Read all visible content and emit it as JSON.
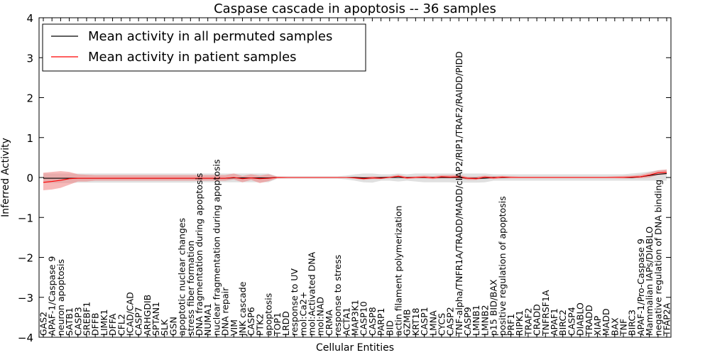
{
  "chart_data": {
    "type": "line",
    "title": "Caspase cascade in apoptosis -- 36 samples",
    "xlabel": "Cellular Entities",
    "ylabel": "Inferred Activity",
    "ylim": [
      -4,
      4
    ],
    "yticks": [
      -4,
      -3,
      -2,
      -1,
      0,
      1,
      2,
      3,
      4
    ],
    "grid": false,
    "legend_position": "top-left",
    "colors": {
      "mean_all": "#000000",
      "mean_patient": "#ff0000",
      "patient_band": "#f08080",
      "all_band": "#bbbbbb"
    },
    "categories": [
      "GAS2",
      "APAF-1/Caspase 9",
      "neuron apoptosis",
      "SATB1",
      "CASP3",
      "SREBF1",
      "DFFB",
      "LIMK1",
      "DFFA",
      "CFL2",
      "ICAD/CAD",
      "CASP7",
      "ARHGDIB",
      "SPTAN1",
      "SLK",
      "GSN",
      "apoptotic nuclear changes",
      "stress fiber formation",
      "DNA fragmentation during apoptosis",
      "NUMA1",
      "nuclear fragmentation during apoptosis",
      "DNA repair",
      "VIM",
      "JNK cascade",
      "CASP6",
      "PTK2",
      "apoptosis",
      "TOP1",
      "LRDD",
      "response to UV",
      "mol:Ca2+",
      "mol:Activated DNA",
      "mol:NAD",
      "CRMA",
      "response to stress",
      "ACTA1",
      "MAP3K1",
      "CASP10",
      "CASP8",
      "PARP1",
      "BID",
      "actin filament polymerization",
      "GZMB",
      "KRT18",
      "CASP1",
      "LMNA",
      "CYCS",
      "CASP2",
      "TNF-alpha/TNFR1A/TRADD/MADD/cIAP2/RIP1/TRAF2/RAIDD/PIDD",
      "CASP9",
      "LMNB1",
      "LMNB2",
      "p15 BID/BAX",
      "positive regulation of apoptosis",
      "PRF1",
      "RIPK1",
      "TRAF2",
      "CRADD",
      "TNFRSF1A",
      "APAF1",
      "BIRC2",
      "CASP4",
      "DIABLO",
      "TRADD",
      "XIAP",
      "MADD",
      "BAX",
      "TNF",
      "BIRC3",
      "APAF-1/Pro-Caspase 9",
      "Mammalian IAPs/DIABLO",
      "negative regulation of DNA binding",
      "TFAP2A"
    ],
    "series": [
      {
        "name": "Mean activity in all permuted samples",
        "color": "#000000",
        "values": [
          -0.02,
          -0.02,
          -0.02,
          -0.02,
          -0.02,
          -0.02,
          -0.02,
          -0.02,
          -0.02,
          -0.02,
          -0.02,
          -0.02,
          -0.02,
          -0.02,
          -0.02,
          -0.02,
          -0.02,
          -0.02,
          -0.02,
          -0.02,
          -0.02,
          -0.02,
          -0.01,
          -0.01,
          -0.01,
          -0.01,
          -0.01,
          0,
          0,
          0,
          0,
          0,
          0,
          0,
          0,
          0,
          0,
          -0.01,
          -0.01,
          0,
          0,
          0,
          0,
          0,
          0,
          0,
          0,
          0,
          0,
          -0.02,
          -0.02,
          -0.02,
          0,
          0,
          0,
          0,
          0,
          0,
          0,
          0,
          0,
          0,
          0,
          0,
          0,
          0,
          0,
          0,
          0,
          0.02,
          0.05,
          0.08,
          0.1
        ],
        "lower": [
          -0.14,
          -0.14,
          -0.14,
          -0.14,
          -0.13,
          -0.13,
          -0.13,
          -0.13,
          -0.13,
          -0.13,
          -0.13,
          -0.13,
          -0.13,
          -0.13,
          -0.13,
          -0.13,
          -0.13,
          -0.13,
          -0.12,
          -0.12,
          -0.12,
          -0.12,
          -0.12,
          -0.12,
          -0.12,
          -0.12,
          -0.12,
          -0.03,
          -0.03,
          -0.03,
          -0.03,
          -0.03,
          -0.03,
          -0.03,
          -0.03,
          -0.05,
          -0.08,
          -0.12,
          -0.13,
          -0.08,
          -0.08,
          -0.1,
          -0.08,
          -0.1,
          -0.12,
          -0.12,
          -0.12,
          -0.12,
          -0.13,
          -0.13,
          -0.13,
          -0.12,
          -0.08,
          -0.08,
          -0.08,
          -0.08,
          -0.08,
          -0.08,
          -0.08,
          -0.08,
          -0.08,
          -0.08,
          -0.08,
          -0.08,
          -0.08,
          -0.08,
          -0.08,
          -0.08,
          -0.08,
          -0.08,
          -0.08,
          -0.08,
          -0.08
        ],
        "upper": [
          0.1,
          0.1,
          0.1,
          0.1,
          0.1,
          0.1,
          0.1,
          0.1,
          0.1,
          0.1,
          0.1,
          0.1,
          0.1,
          0.1,
          0.1,
          0.1,
          0.1,
          0.1,
          0.1,
          0.1,
          0.1,
          0.1,
          0.1,
          0.1,
          0.1,
          0.1,
          0.1,
          0.03,
          0.03,
          0.03,
          0.03,
          0.03,
          0.03,
          0.03,
          0.03,
          0.05,
          0.08,
          0.1,
          0.1,
          0.08,
          0.08,
          0.1,
          0.08,
          0.1,
          0.1,
          0.1,
          0.1,
          0.1,
          0.1,
          0.1,
          0.1,
          0.1,
          0.08,
          0.08,
          0.08,
          0.08,
          0.08,
          0.08,
          0.08,
          0.08,
          0.08,
          0.08,
          0.08,
          0.08,
          0.08,
          0.08,
          0.08,
          0.08,
          0.1,
          0.12,
          0.15,
          0.18,
          0.2
        ]
      },
      {
        "name": "Mean activity in patient samples",
        "color": "#ff0000",
        "values": [
          -0.12,
          -0.1,
          -0.07,
          -0.03,
          -0.02,
          -0.02,
          -0.02,
          -0.02,
          -0.02,
          -0.02,
          -0.02,
          -0.02,
          -0.02,
          -0.02,
          -0.02,
          -0.02,
          -0.02,
          -0.02,
          -0.02,
          -0.02,
          -0.02,
          -0.02,
          0,
          -0.03,
          -0.01,
          -0.03,
          -0.02,
          0,
          0,
          0,
          0,
          0,
          0,
          0,
          0,
          0,
          -0.01,
          -0.03,
          -0.01,
          -0.02,
          0,
          0.03,
          -0.01,
          0,
          0.01,
          -0.01,
          0.02,
          0.01,
          0.02,
          -0.02,
          -0.03,
          0.01,
          -0.01,
          0.01,
          0,
          0,
          0,
          0,
          0,
          0,
          0,
          0,
          0,
          0,
          0,
          0,
          0,
          0,
          0.01,
          0.02,
          0.06,
          0.12,
          0.13
        ],
        "lower": [
          -0.32,
          -0.3,
          -0.26,
          -0.18,
          -0.1,
          -0.1,
          -0.08,
          -0.08,
          -0.08,
          -0.08,
          -0.08,
          -0.08,
          -0.08,
          -0.08,
          -0.08,
          -0.08,
          -0.08,
          -0.08,
          -0.08,
          -0.08,
          -0.08,
          -0.08,
          -0.05,
          -0.12,
          -0.06,
          -0.14,
          -0.09,
          -0.02,
          -0.01,
          0,
          0,
          0,
          0,
          0,
          0,
          0,
          -0.03,
          -0.06,
          -0.04,
          -0.04,
          0,
          0,
          -0.04,
          -0.02,
          -0.02,
          -0.04,
          -0.02,
          -0.02,
          -0.02,
          -0.06,
          -0.06,
          -0.02,
          -0.04,
          -0.02,
          -0.01,
          -0.01,
          -0.01,
          -0.01,
          -0.01,
          -0.01,
          -0.01,
          -0.01,
          -0.01,
          -0.01,
          -0.01,
          -0.01,
          -0.01,
          -0.02,
          -0.02,
          -0.02,
          0,
          0.06,
          0.08
        ],
        "upper": [
          0.12,
          0.14,
          0.16,
          0.14,
          0.08,
          0.07,
          0.06,
          0.06,
          0.06,
          0.06,
          0.06,
          0.06,
          0.06,
          0.06,
          0.06,
          0.06,
          0.06,
          0.06,
          0.06,
          0.06,
          0.06,
          0.06,
          0.1,
          0.04,
          0.08,
          0.05,
          0.08,
          0.02,
          0.01,
          0,
          0,
          0,
          0,
          0,
          0,
          0,
          0.02,
          0.02,
          0.03,
          0.02,
          0.03,
          0.07,
          0.02,
          0.03,
          0.05,
          0.03,
          0.06,
          0.06,
          0.07,
          0.02,
          0.02,
          0.05,
          0.03,
          0.04,
          0.03,
          0.02,
          0.02,
          0.02,
          0.02,
          0.02,
          0.02,
          0.02,
          0.02,
          0.02,
          0.02,
          0.02,
          0.03,
          0.04,
          0.05,
          0.07,
          0.12,
          0.18,
          0.2
        ]
      }
    ]
  }
}
